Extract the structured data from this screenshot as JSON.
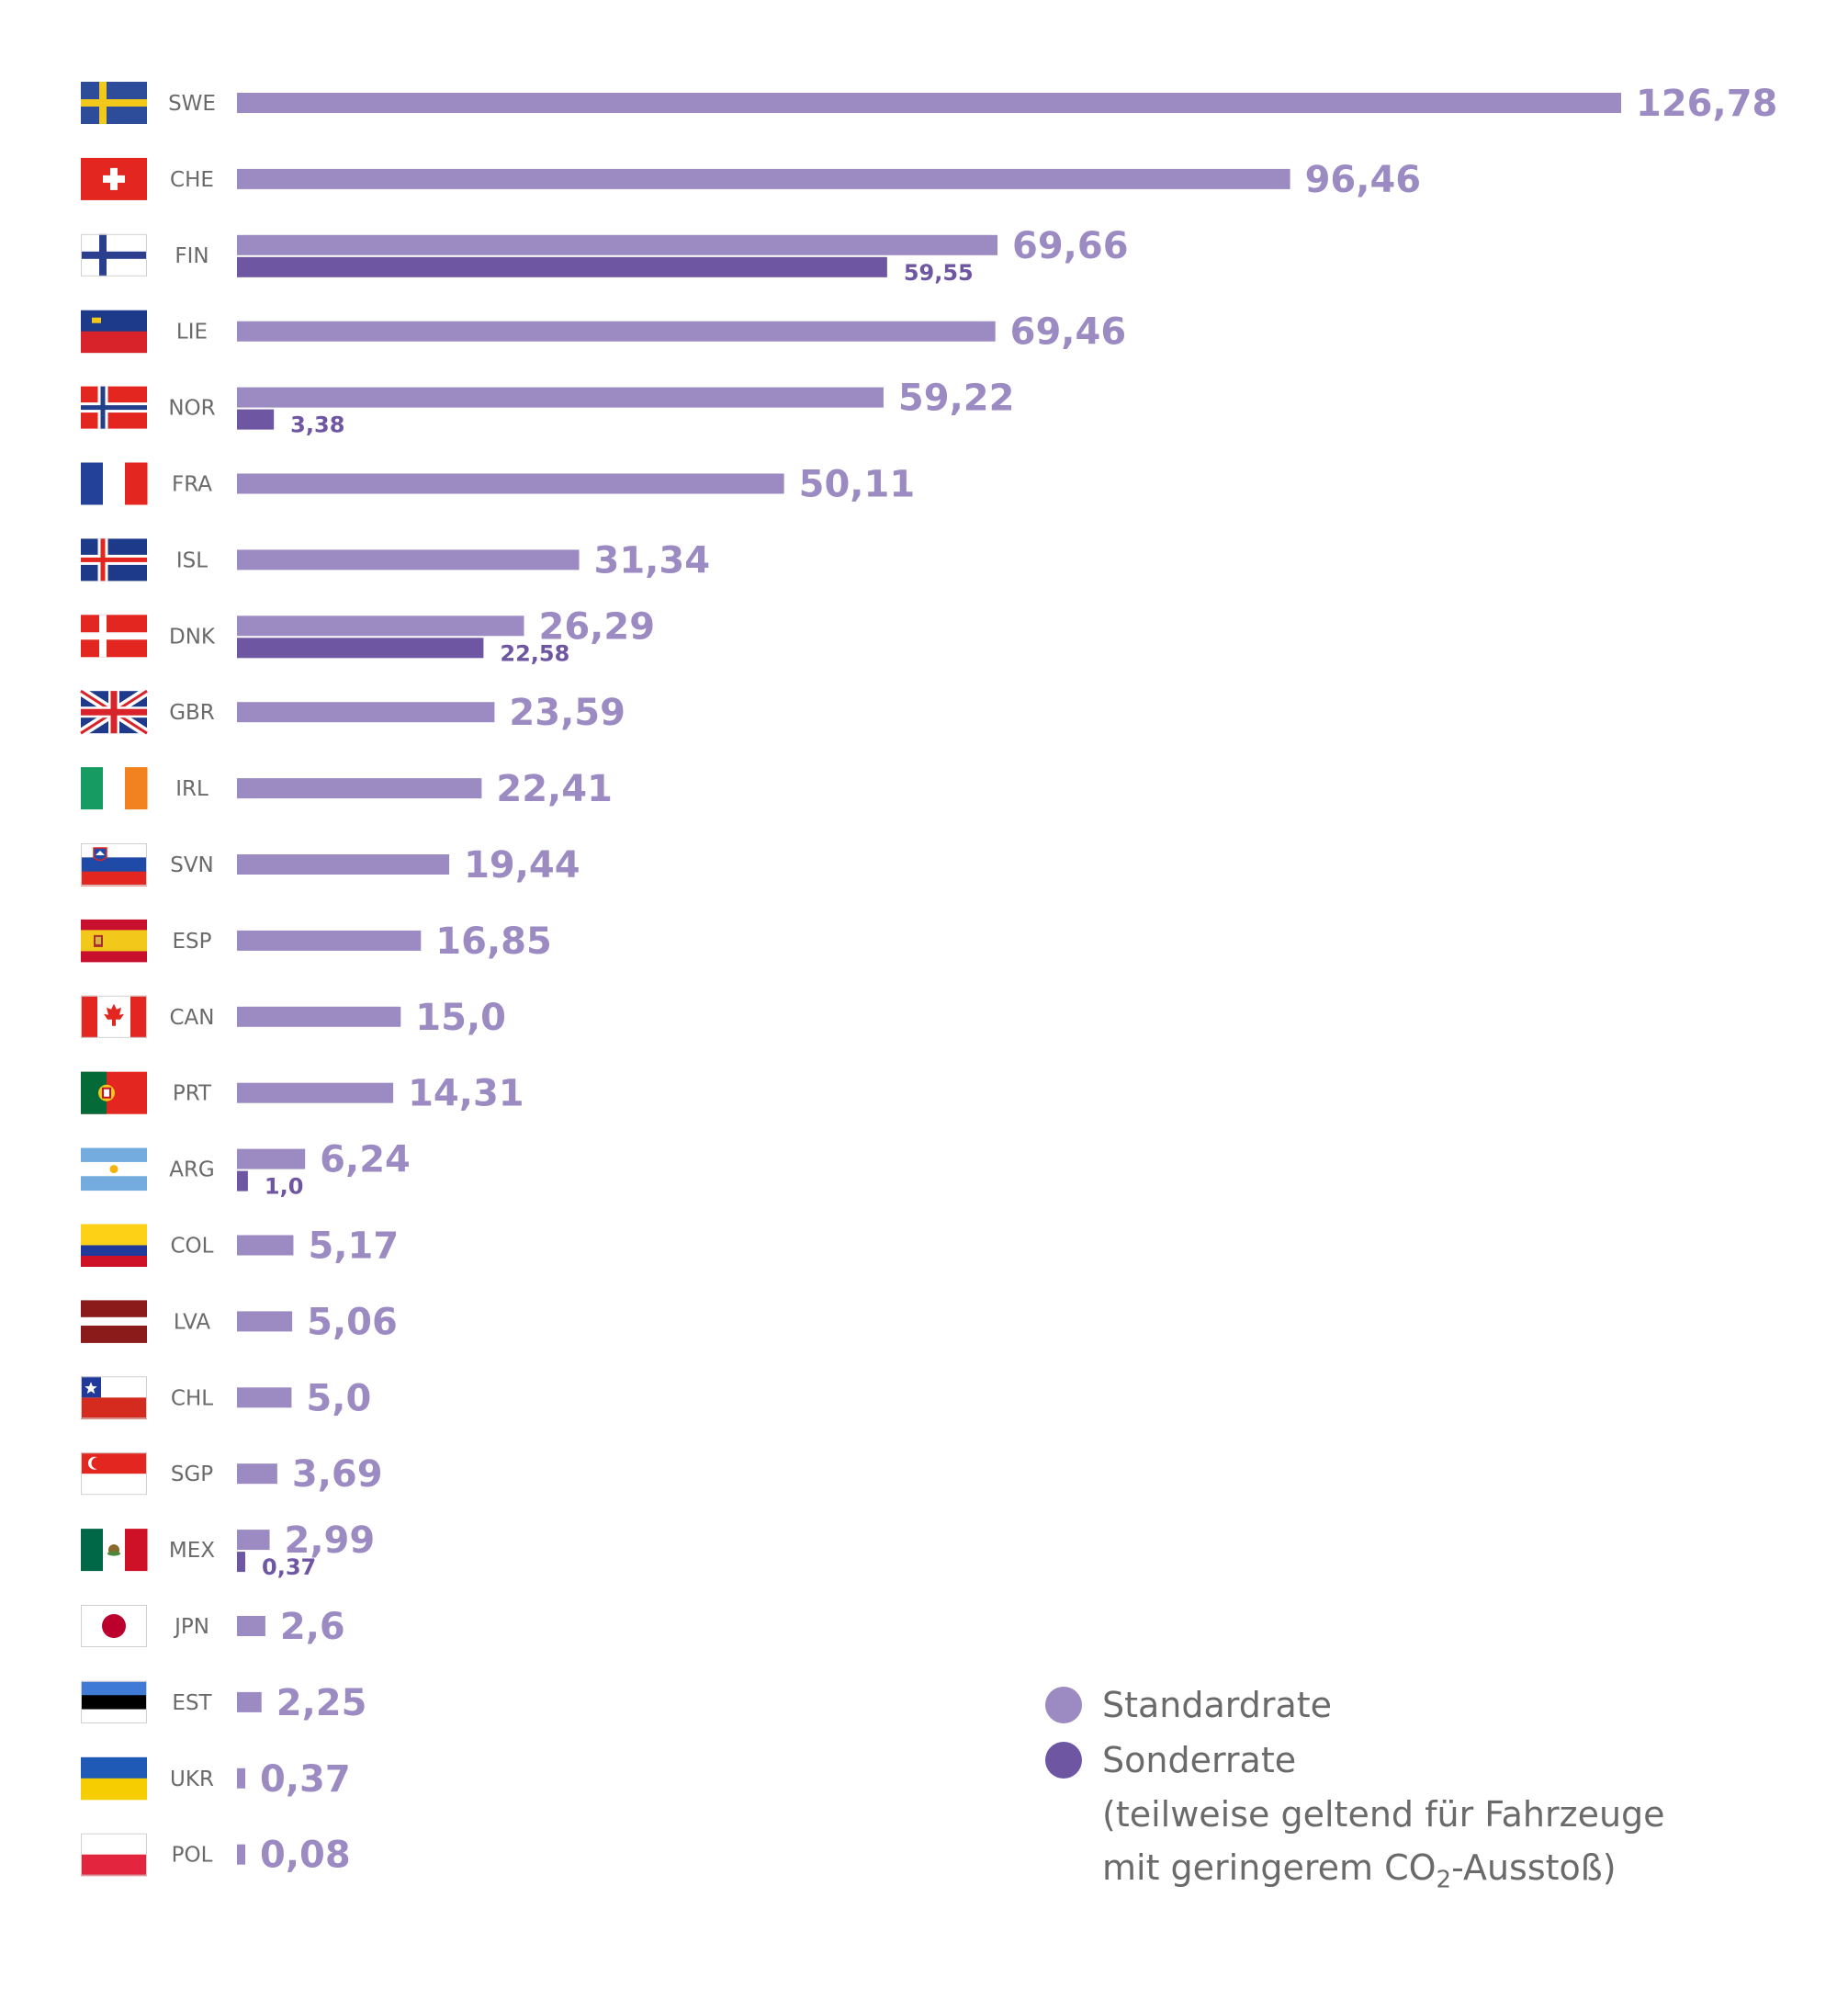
{
  "chart_data": {
    "type": "bar",
    "orientation": "horizontal",
    "categories": [
      "SWE",
      "CHE",
      "FIN",
      "LIE",
      "NOR",
      "FRA",
      "ISL",
      "DNK",
      "GBR",
      "IRL",
      "SVN",
      "ESP",
      "CAN",
      "PRT",
      "ARG",
      "COL",
      "LVA",
      "CHL",
      "SGP",
      "MEX",
      "JPN",
      "EST",
      "UKR",
      "POL"
    ],
    "series": [
      {
        "name": "Standardrate",
        "color": "#9b8bc2",
        "values": [
          126.78,
          96.46,
          69.66,
          69.46,
          59.22,
          50.11,
          31.34,
          26.29,
          23.59,
          22.41,
          19.44,
          16.85,
          15.0,
          14.31,
          6.24,
          5.17,
          5.06,
          5.0,
          3.69,
          2.99,
          2.6,
          2.25,
          0.37,
          0.08
        ],
        "labels": [
          "126,78",
          "96,46",
          "69,66",
          "69,46",
          "59,22",
          "50,11",
          "31,34",
          "26,29",
          "23,59",
          "22,41",
          "19,44",
          "16,85",
          "15,0",
          "14,31",
          "6,24",
          "5,17",
          "5,06",
          "5,0",
          "3,69",
          "2,99",
          "2,6",
          "2,25",
          "0,37",
          "0,08"
        ]
      },
      {
        "name": "Sonderrate",
        "color": "#6e56a3",
        "values": [
          null,
          null,
          59.55,
          null,
          3.38,
          null,
          null,
          22.58,
          null,
          null,
          null,
          null,
          null,
          null,
          1.0,
          null,
          null,
          null,
          null,
          0.37,
          null,
          null,
          null,
          null
        ],
        "labels": [
          null,
          null,
          "59,55",
          null,
          "3,38",
          null,
          null,
          "22,58",
          null,
          null,
          null,
          null,
          null,
          null,
          "1,0",
          null,
          null,
          null,
          null,
          "0,37",
          null,
          null,
          null,
          null
        ]
      }
    ],
    "flags": [
      "flag-sweden",
      "flag-switzerland",
      "flag-finland",
      "flag-liechtenstein",
      "flag-norway",
      "flag-france",
      "flag-iceland",
      "flag-denmark",
      "flag-uk",
      "flag-ireland",
      "flag-slovenia",
      "flag-spain",
      "flag-canada",
      "flag-portugal",
      "flag-argentina",
      "flag-colombia",
      "flag-latvia",
      "flag-chile",
      "flag-singapore",
      "flag-mexico",
      "flag-japan",
      "flag-estonia",
      "flag-ukraine",
      "flag-poland"
    ],
    "xlim": [
      0,
      126.78
    ],
    "grid": false,
    "legend_position": "bottom-right",
    "legend": {
      "standard": "Standardrate",
      "special": "Sonderrate",
      "note_line1": "(teilweise geltend für Fahrzeuge",
      "note_line2_pre": "mit geringerem CO",
      "note_line2_sub": "2",
      "note_line2_post": "-Ausstoß)"
    }
  }
}
